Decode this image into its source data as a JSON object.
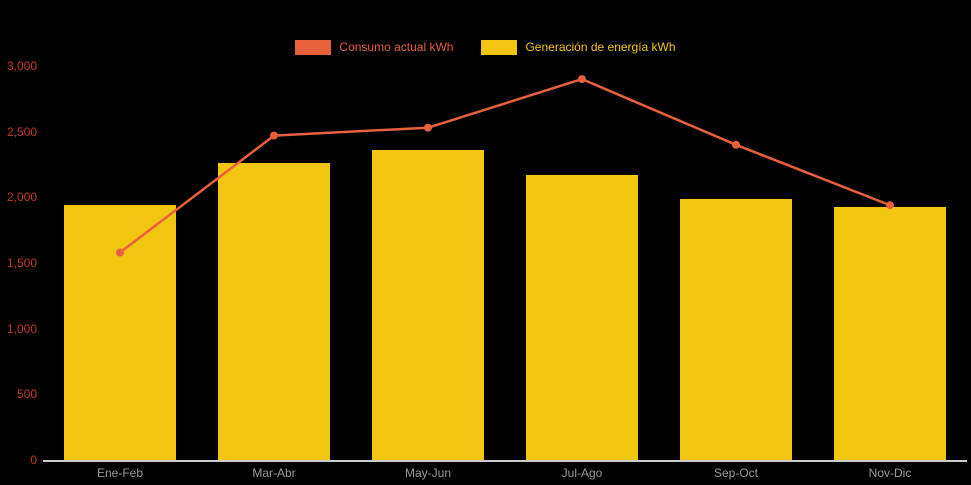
{
  "colors": {
    "background": "#000000",
    "bar": "#f2c511",
    "line": "#e8603c",
    "ytick_text": "#c0392b",
    "xtick_text": "#9a9a9a",
    "axis_line": "#cccccc"
  },
  "chart_data": {
    "type": "combo",
    "title": "",
    "categories": [
      "Ene-Feb",
      "Mar-Abr",
      "May-Jun",
      "Jul-Ago",
      "Sep-Oct",
      "Nov-Dic"
    ],
    "series": [
      {
        "name": "Consumo actual kWh",
        "type": "line",
        "color": "#e8603c",
        "values": [
          1580,
          2470,
          2530,
          2900,
          2400,
          1940
        ]
      },
      {
        "name": "Generación de energía kWh",
        "type": "bar",
        "color": "#f2c511",
        "values": [
          1940,
          2260,
          2360,
          2170,
          1990,
          1930
        ]
      }
    ],
    "ylim": [
      0,
      3000
    ],
    "yticks": [
      "3,000",
      "2,500",
      "2,000",
      "1,500",
      "1,000",
      "500",
      "0"
    ],
    "ytick_values": [
      3000,
      2500,
      2000,
      1500,
      1000,
      500,
      0
    ],
    "xlabel": "",
    "ylabel": "",
    "legend_position": "top",
    "grid": false
  }
}
